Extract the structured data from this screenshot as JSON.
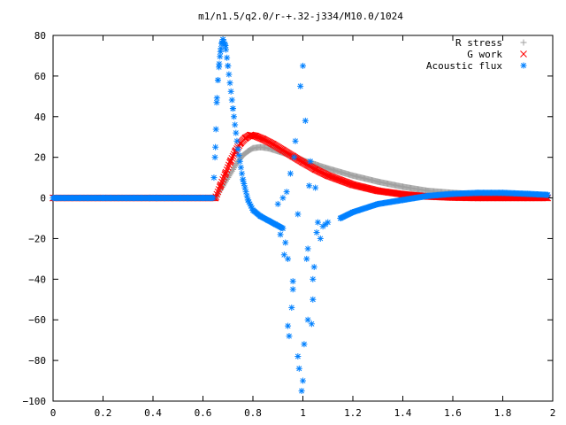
{
  "chart_data": {
    "type": "scatter",
    "title": "m1/n1.5/q2.0/r-+.32-j334/M10.0/1024",
    "xlabel": "",
    "ylabel": "",
    "xlim": [
      0,
      2
    ],
    "ylim": [
      -100,
      80
    ],
    "x_ticks": [
      "0",
      "0.2",
      "0.4",
      "0.6",
      "0.8",
      "1",
      "1.2",
      "1.4",
      "1.6",
      "1.8",
      "2"
    ],
    "y_ticks": [
      "80",
      "60",
      "40",
      "20",
      "0",
      "−20",
      "−40",
      "−60",
      "−80",
      "−100"
    ],
    "grid": false,
    "legend_position": "top-right",
    "series": [
      {
        "name": "R stress",
        "marker": "plus",
        "color": "#a0a0a0",
        "x": [
          0.0,
          0.2,
          0.4,
          0.6,
          0.65,
          0.68,
          0.7,
          0.72,
          0.74,
          0.76,
          0.78,
          0.8,
          0.83,
          0.86,
          0.9,
          0.95,
          1.0,
          1.05,
          1.1,
          1.2,
          1.3,
          1.4,
          1.5,
          1.6,
          1.7,
          1.8,
          1.9,
          1.98
        ],
        "y": [
          0,
          0,
          0,
          0,
          0,
          6,
          10,
          14,
          18,
          21,
          23,
          24.5,
          25,
          24.5,
          23,
          21,
          18.5,
          16.5,
          14.5,
          11,
          8,
          5.5,
          3.5,
          2.5,
          1.8,
          1.5,
          1.2,
          0.5
        ]
      },
      {
        "name": "G work",
        "marker": "cross",
        "color": "#ff0000",
        "x": [
          0.0,
          0.2,
          0.4,
          0.6,
          0.65,
          0.67,
          0.69,
          0.71,
          0.73,
          0.75,
          0.77,
          0.79,
          0.81,
          0.84,
          0.88,
          0.92,
          0.96,
          1.0,
          1.05,
          1.1,
          1.2,
          1.3,
          1.4,
          1.5,
          1.6,
          1.7,
          1.8,
          1.9,
          1.98
        ],
        "y": [
          0,
          0,
          0,
          0,
          0,
          6,
          12,
          18,
          23,
          27,
          29.5,
          31,
          30.5,
          29,
          26.5,
          23.5,
          20.5,
          17.5,
          14,
          11,
          6.5,
          3.5,
          1.8,
          0.7,
          0.2,
          0,
          0,
          0,
          0
        ]
      },
      {
        "name": "Acoustic flux",
        "marker": "star",
        "color": "#0080ff",
        "x": [
          0.0,
          0.2,
          0.4,
          0.6,
          0.64,
          0.65,
          0.655,
          0.66,
          0.665,
          0.67,
          0.675,
          0.68,
          0.69,
          0.7,
          0.72,
          0.74,
          0.76,
          0.78,
          0.8,
          0.83,
          0.86,
          0.89,
          0.92,
          0.9,
          0.91,
          0.92,
          0.93,
          0.94,
          0.95,
          0.96,
          0.97,
          0.98,
          0.99,
          1.0,
          1.01,
          1.02,
          1.03,
          1.04,
          1.05,
          1.06,
          1.07,
          1.08,
          1.09,
          0.94,
          0.96,
          0.98,
          0.995,
          1.005,
          1.015,
          1.025,
          1.035,
          1.045,
          1.055,
          0.925,
          0.935,
          0.945,
          0.955,
          0.965,
          0.985,
          1.0,
          1.02,
          1.04,
          1.1,
          1.15,
          1.2,
          1.3,
          1.4,
          1.5,
          1.6,
          1.7,
          1.8,
          1.9,
          1.98
        ],
        "y": [
          0,
          0,
          0,
          0,
          0,
          25,
          47,
          58,
          66,
          72,
          76,
          78,
          75,
          65,
          44,
          24,
          9,
          -1,
          -6,
          -9,
          -11,
          -13,
          -15,
          -3,
          -18,
          0,
          -22,
          -30,
          12,
          -45,
          28,
          -78,
          55,
          -90,
          38,
          -25,
          18,
          -50,
          5,
          -12,
          -20,
          -14,
          -13,
          -63,
          -41,
          -8,
          -95,
          -72,
          -30,
          6,
          -62,
          -34,
          -17,
          -28,
          3,
          -68,
          -54,
          20,
          -84,
          65,
          -60,
          -40,
          -12,
          -10,
          -7,
          -3,
          -1,
          1,
          2,
          2.5,
          2.5,
          2,
          1.5
        ]
      }
    ]
  }
}
